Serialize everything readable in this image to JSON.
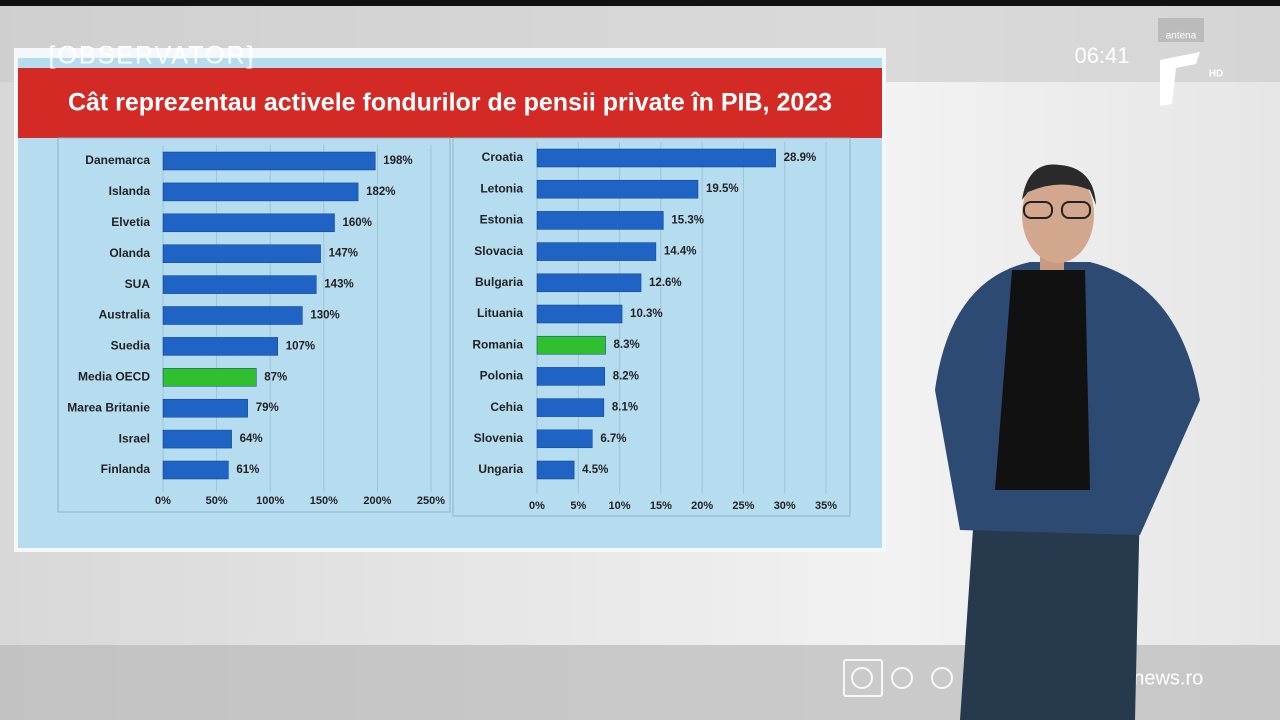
{
  "title": "Cât reprezentau activele fondurilor de pensii private în PIB, 2023",
  "overlay": {
    "brand": "[OBSERVATOR]",
    "time": "06:41",
    "channel": "antena",
    "hd": "HD",
    "website": "observatornews.ro"
  },
  "chart_data": [
    {
      "type": "hbar",
      "categories": [
        "Danemarca",
        "Islanda",
        "Elvetia",
        "Olanda",
        "SUA",
        "Australia",
        "Suedia",
        "Media OECD",
        "Marea Britanie",
        "Israel",
        "Finlanda"
      ],
      "values": [
        198,
        182,
        160,
        147,
        143,
        130,
        107,
        87,
        79,
        64,
        61
      ],
      "value_labels": [
        "198%",
        "182%",
        "160%",
        "147%",
        "143%",
        "130%",
        "107%",
        "87%",
        "79%",
        "64%",
        "61%"
      ],
      "colors": [
        "#1f63c4",
        "#1f63c4",
        "#1f63c4",
        "#1f63c4",
        "#1f63c4",
        "#1f63c4",
        "#1f63c4",
        "#2fbf2f",
        "#1f63c4",
        "#1f63c4",
        "#1f63c4"
      ],
      "xlim": [
        0,
        250
      ],
      "xticks": [
        {
          "value": 0,
          "label": "0%"
        },
        {
          "value": 50,
          "label": "50%"
        },
        {
          "value": 100,
          "label": "100%"
        },
        {
          "value": 150,
          "label": "150%"
        },
        {
          "value": 200,
          "label": "200%"
        },
        {
          "value": 250,
          "label": "250%"
        }
      ],
      "grid": true
    },
    {
      "type": "hbar",
      "categories": [
        "Croatia",
        "Letonia",
        "Estonia",
        "Slovacia",
        "Bulgaria",
        "Lituania",
        "Romania",
        "Polonia",
        "Cehia",
        "Slovenia",
        "Ungaria"
      ],
      "values": [
        28.9,
        19.5,
        15.3,
        14.4,
        12.6,
        10.3,
        8.3,
        8.2,
        8.1,
        6.7,
        4.5
      ],
      "value_labels": [
        "28.9%",
        "19.5%",
        "15.3%",
        "14.4%",
        "12.6%",
        "10.3%",
        "8.3%",
        "8.2%",
        "8.1%",
        "6.7%",
        "4.5%"
      ],
      "colors": [
        "#1f63c4",
        "#1f63c4",
        "#1f63c4",
        "#1f63c4",
        "#1f63c4",
        "#1f63c4",
        "#2fbf2f",
        "#1f63c4",
        "#1f63c4",
        "#1f63c4",
        "#1f63c4"
      ],
      "xlim": [
        0,
        35
      ],
      "xticks": [
        {
          "value": 0,
          "label": "0%"
        },
        {
          "value": 5,
          "label": "5%"
        },
        {
          "value": 10,
          "label": "10%"
        },
        {
          "value": 15,
          "label": "15%"
        },
        {
          "value": 20,
          "label": "20%"
        },
        {
          "value": 25,
          "label": "25%"
        },
        {
          "value": 30,
          "label": "30%"
        },
        {
          "value": 35,
          "label": "35%"
        }
      ],
      "grid": true
    }
  ]
}
